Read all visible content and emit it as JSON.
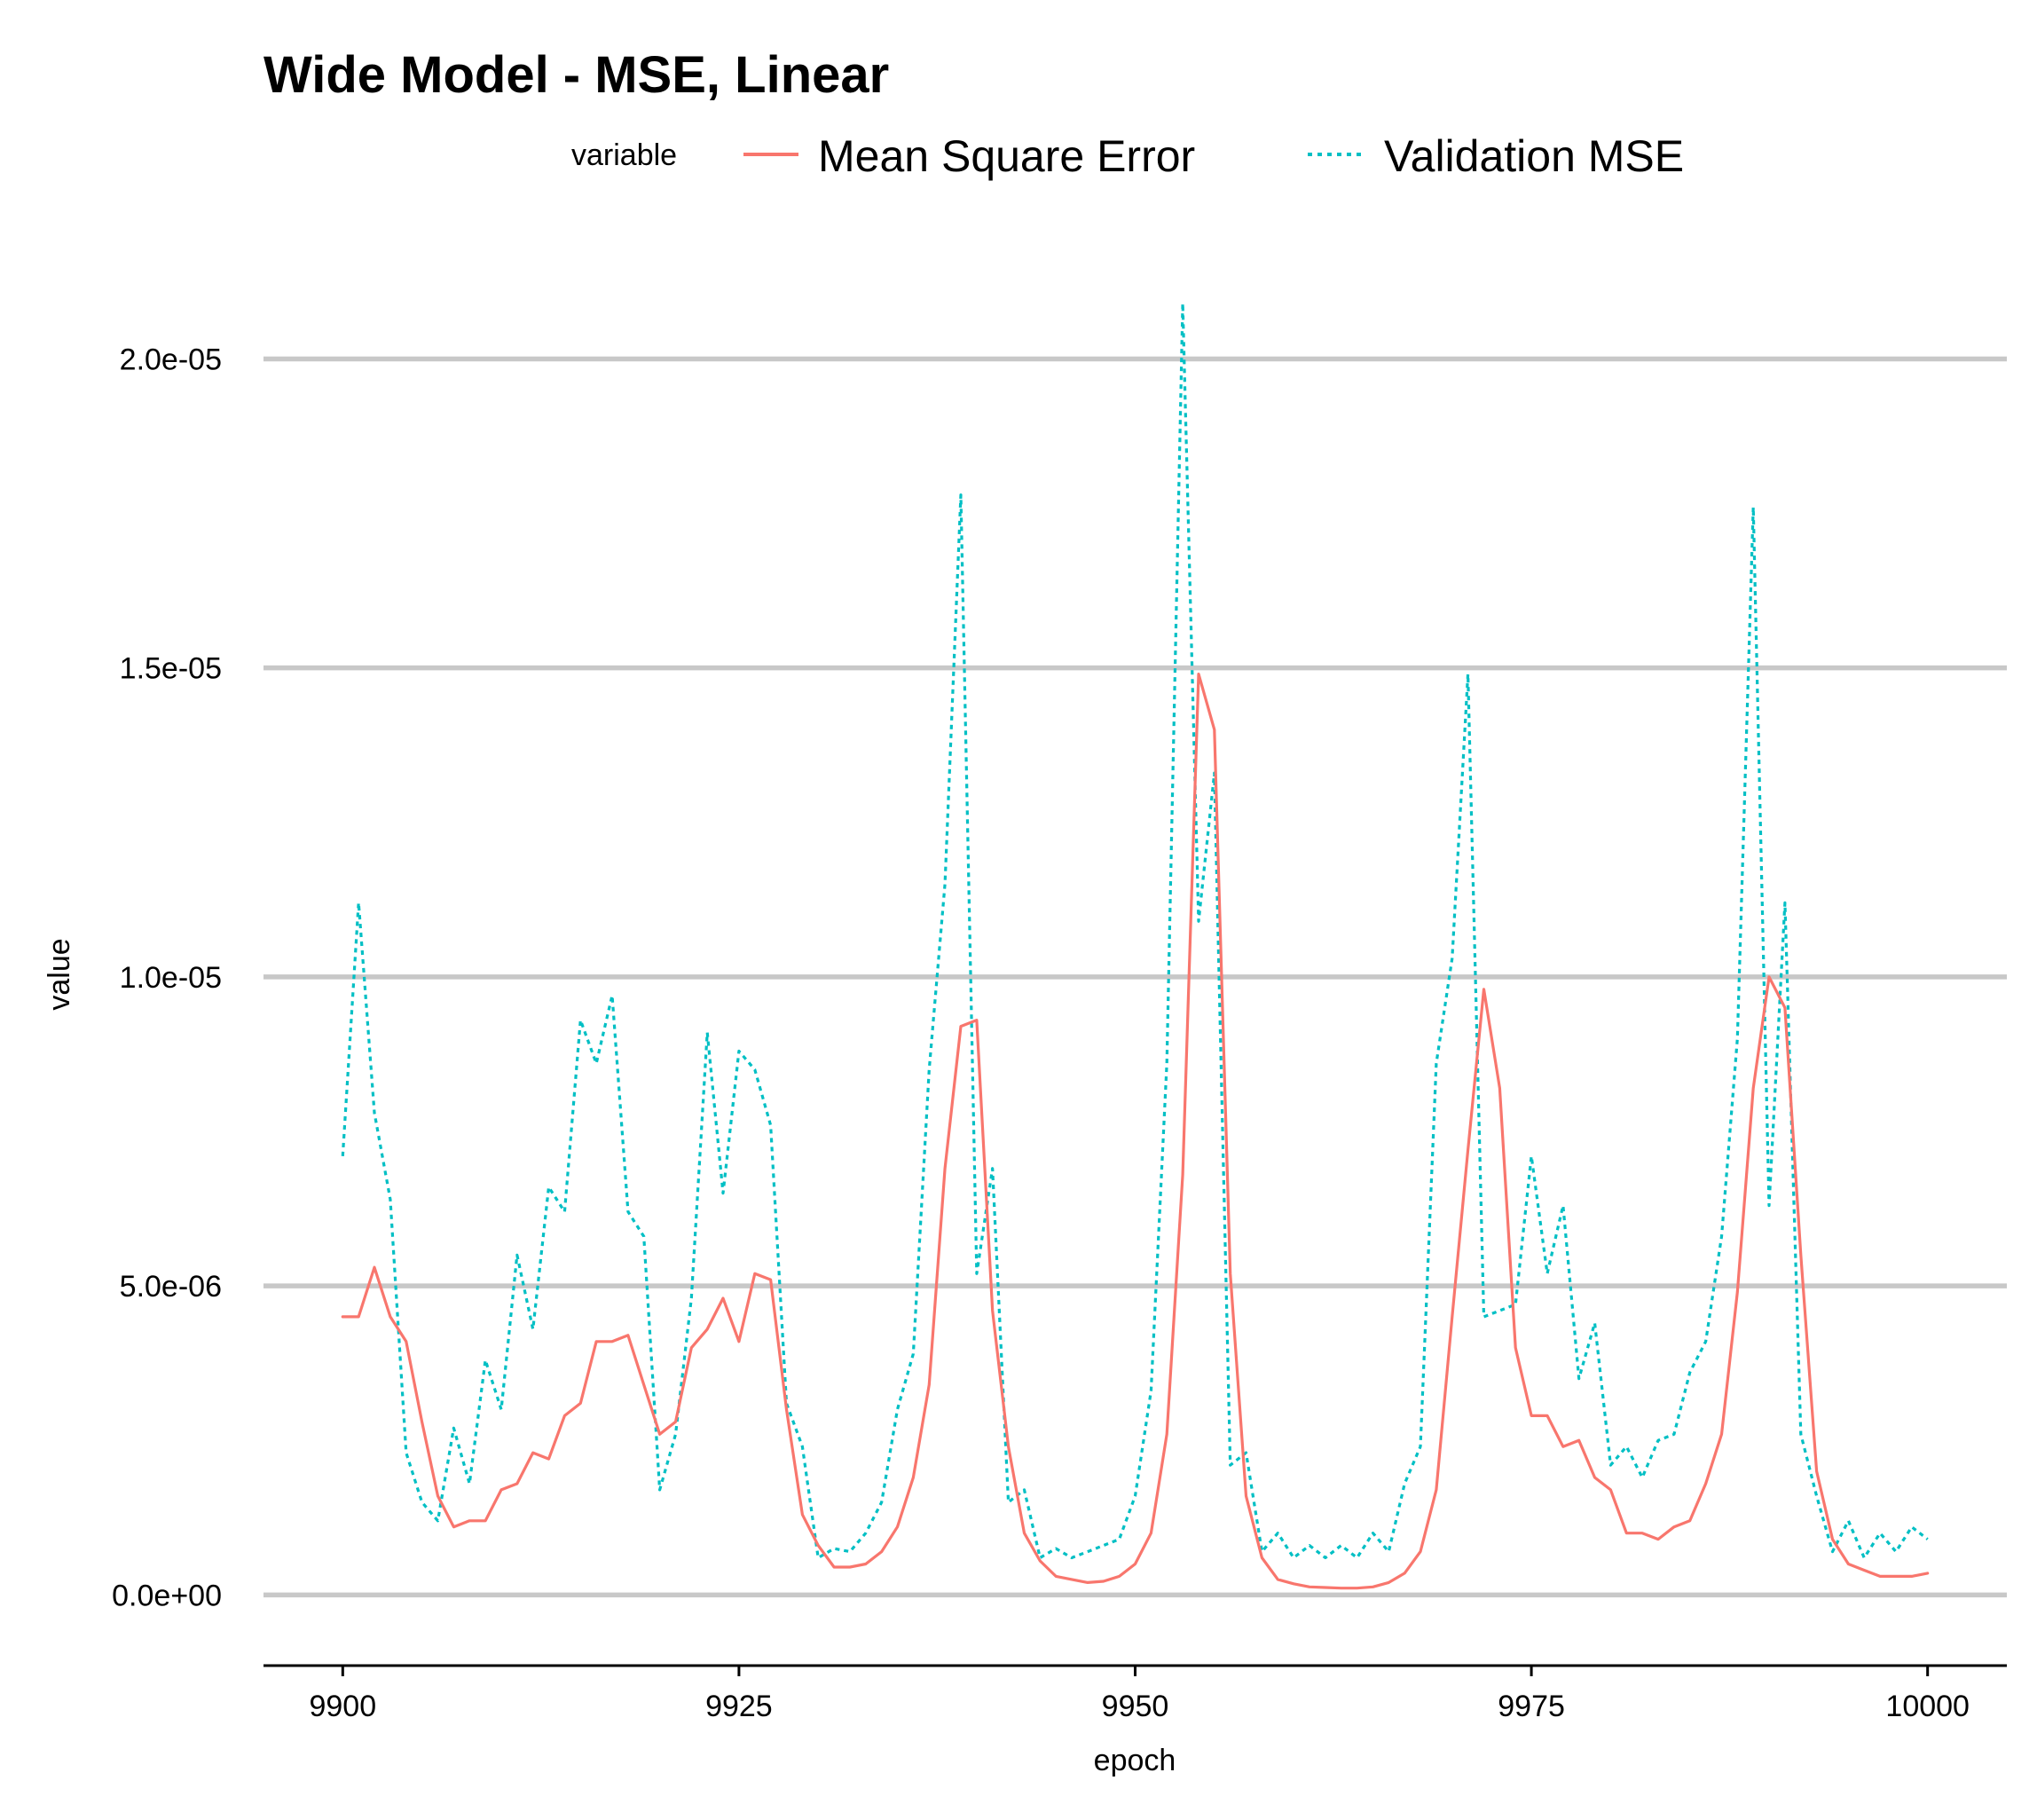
{
  "chart_data": {
    "type": "line",
    "title": "Wide Model - MSE, Linear",
    "xlabel": "epoch",
    "ylabel": "value",
    "xlim": [
      9895,
      10005
    ],
    "ylim": [
      -9e-07,
      2.15e-05
    ],
    "x_ticks": [
      9900,
      9925,
      9950,
      9975,
      10000
    ],
    "x_tick_labels": [
      "9900",
      "9925",
      "9950",
      "9975",
      "10000"
    ],
    "y_ticks": [
      0,
      5e-06,
      1e-05,
      1.5e-05,
      2e-05
    ],
    "y_tick_labels": [
      "0.0e+00",
      "5.0e-06",
      "1.0e-05",
      "1.5e-05",
      "2.0e-05"
    ],
    "grid": "horizontal major gridlines on",
    "legend": {
      "title": "variable",
      "placement": "top",
      "entries": [
        "Mean Square Error",
        "Validation MSE"
      ]
    },
    "x_start": 9900,
    "x_end": 10000,
    "series": [
      {
        "name": "Mean Square Error",
        "color": "#F8766D",
        "linestyle": "solid",
        "values": [
          4.5e-06,
          4.5e-06,
          5.3e-06,
          4.5e-06,
          4.1e-06,
          2.8e-06,
          1.6e-06,
          1.1e-06,
          1.2e-06,
          1.2e-06,
          1.7e-06,
          1.8e-06,
          2.3e-06,
          2.2e-06,
          2.9e-06,
          3.1e-06,
          4.1e-06,
          4.1e-06,
          4.2e-06,
          3.4e-06,
          2.6e-06,
          2.8e-06,
          4e-06,
          4.3e-06,
          4.8e-06,
          4.1e-06,
          5.2e-06,
          5.1e-06,
          3e-06,
          1.3e-06,
          8e-07,
          4.5e-07,
          4.5e-07,
          5e-07,
          7e-07,
          1.1e-06,
          1.9e-06,
          3.4e-06,
          6.9e-06,
          9.2e-06,
          9.3e-06,
          4.6e-06,
          2.4e-06,
          1e-06,
          5.5e-07,
          3e-07,
          2.5e-07,
          2e-07,
          2.2e-07,
          3e-07,
          5e-07,
          1e-06,
          2.6e-06,
          6.8e-06,
          1.49e-05,
          1.4e-05,
          5.2e-06,
          1.6e-06,
          6e-07,
          2.5e-07,
          1.8e-07,
          1.3e-07,
          1.2e-07,
          1.1e-07,
          1.1e-07,
          1.3e-07,
          2e-07,
          3.5e-07,
          7e-07,
          1.7e-06,
          4.5e-06,
          7.2e-06,
          9.8e-06,
          8.2e-06,
          4e-06,
          2.9e-06,
          2.9e-06,
          2.4e-06,
          2.5e-06,
          1.9e-06,
          1.7e-06,
          1e-06,
          1e-06,
          9e-07,
          1.1e-06,
          1.2e-06,
          1.8e-06,
          2.6e-06,
          4.9e-06,
          8.2e-06,
          1e-05,
          9.5e-06,
          5.5e-06,
          2e-06,
          9e-07,
          5e-07,
          4e-07,
          3e-07,
          3e-07,
          3e-07,
          3.5e-07
        ]
      },
      {
        "name": "Validation MSE",
        "color": "#00BFC4",
        "linestyle": "dotted",
        "values": [
          7.1e-06,
          1.12e-05,
          7.8e-06,
          6.4e-06,
          2.3e-06,
          1.5e-06,
          1.2e-06,
          2.7e-06,
          1.8e-06,
          3.8e-06,
          3e-06,
          5.5e-06,
          4.3e-06,
          6.6e-06,
          6.2e-06,
          9.3e-06,
          8.6e-06,
          9.7e-06,
          6.2e-06,
          5.8e-06,
          1.7e-06,
          2.6e-06,
          4.8e-06,
          9.1e-06,
          6.5e-06,
          8.8e-06,
          8.5e-06,
          7.6e-06,
          3.1e-06,
          2.4e-06,
          6e-07,
          7.5e-07,
          7e-07,
          1e-06,
          1.5e-06,
          3e-06,
          3.9e-06,
          8.5e-06,
          1.15e-05,
          1.78e-05,
          5.2e-06,
          6.9e-06,
          1.5e-06,
          1.7e-06,
          6e-07,
          7.5e-07,
          6e-07,
          7e-07,
          8e-07,
          9e-07,
          1.6e-06,
          3.3e-06,
          8.6e-06,
          2.09e-05,
          1.09e-05,
          1.33e-05,
          2.1e-06,
          2.3e-06,
          7e-07,
          1e-06,
          6e-07,
          8e-07,
          6e-07,
          8e-07,
          6e-07,
          1e-06,
          7e-07,
          1.8e-06,
          2.4e-06,
          8.6e-06,
          1.03e-05,
          1.49e-05,
          4.5e-06,
          4.6e-06,
          4.7e-06,
          7.1e-06,
          5.2e-06,
          6.3e-06,
          3.5e-06,
          4.4e-06,
          2.1e-06,
          2.4e-06,
          1.9e-06,
          2.5e-06,
          2.6e-06,
          3.6e-06,
          4.1e-06,
          5.8e-06,
          9e-06,
          1.76e-05,
          6.3e-06,
          1.12e-05,
          2.6e-06,
          1.6e-06,
          7e-07,
          1.2e-06,
          6e-07,
          1e-06,
          7e-07,
          1.1e-06,
          9e-07
        ]
      }
    ]
  }
}
